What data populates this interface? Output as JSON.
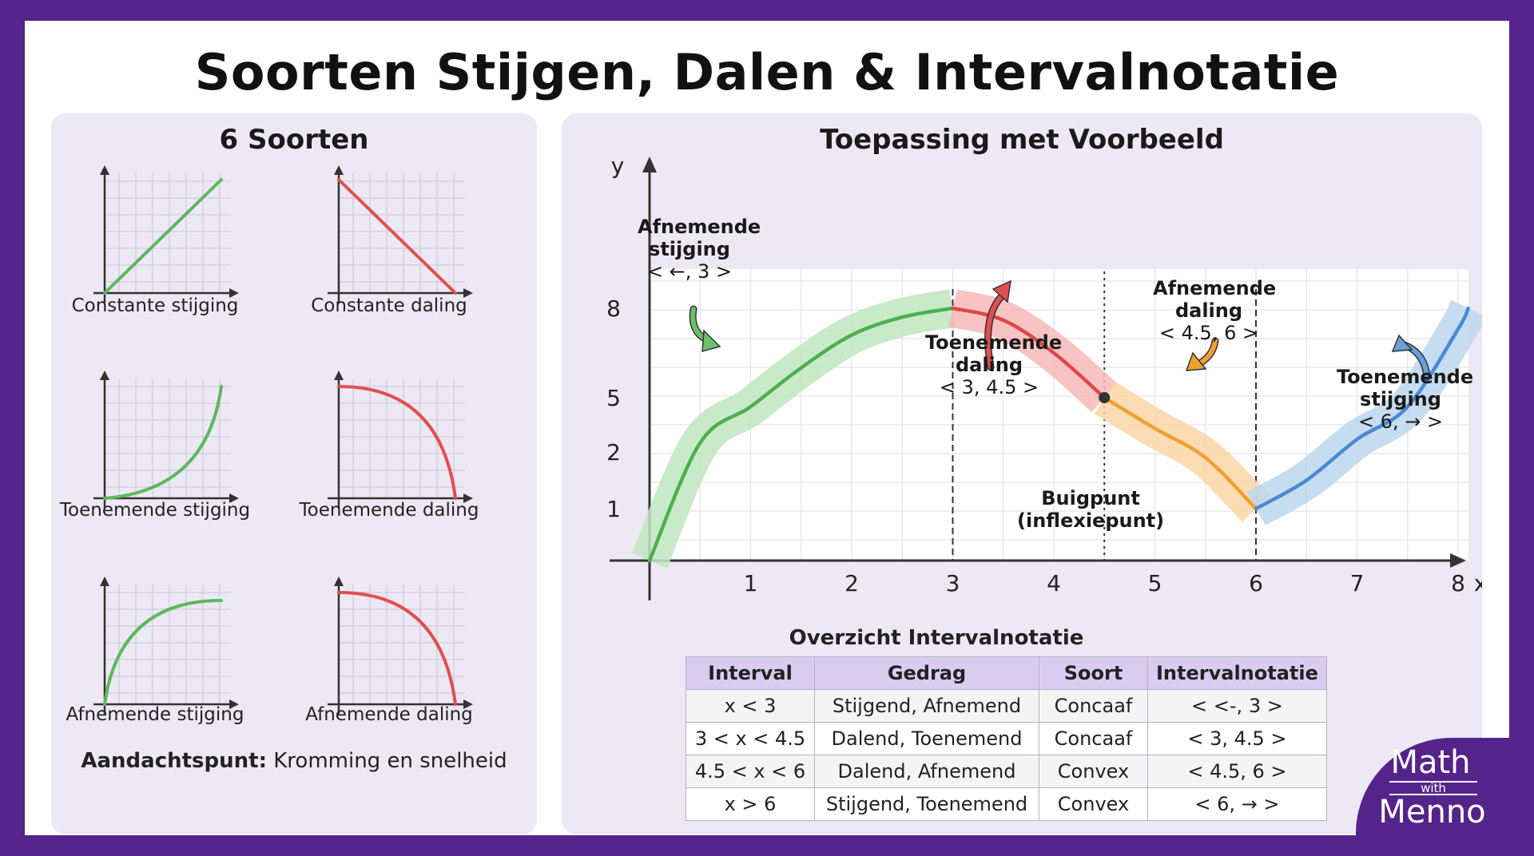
{
  "title": "Soorten Stijgen, Dalen & Intervalnotatie",
  "left_panel": {
    "title": "6 Soorten",
    "types": [
      {
        "label": "Constante stijging",
        "color": "#5cb85c",
        "shape": "linear-up"
      },
      {
        "label": "Constante daling",
        "color": "#e05050",
        "shape": "linear-down"
      },
      {
        "label": "Toenemende stijging",
        "color": "#5cb85c",
        "shape": "convex-up"
      },
      {
        "label": "Toenemende daling",
        "color": "#e05050",
        "shape": "concave-down"
      },
      {
        "label": "Afnemende stijging",
        "color": "#5cb85c",
        "shape": "concave-up"
      },
      {
        "label": "Afnemende daling",
        "color": "#e05050",
        "shape": "concave-down"
      }
    ],
    "note_bold": "Aandachtspunt:",
    "note_text": " Kromming en snelheid"
  },
  "right_panel": {
    "title": "Toepassing met Voorbeeld",
    "chart_data": {
      "type": "line",
      "xlabel": "x",
      "ylabel": "y",
      "x_ticks": [
        1,
        2,
        3,
        4,
        5,
        6,
        7,
        8
      ],
      "y_ticks": [
        1,
        2,
        5,
        8
      ],
      "xlim": [
        0,
        8.1
      ],
      "grid": true,
      "segments": [
        {
          "name": "Afnemende stijging",
          "interval": "< ←, 3 >",
          "color": "#4caf50",
          "band": "#bfe6bf",
          "x": [
            0,
            3
          ],
          "points": [
            [
              0,
              0
            ],
            [
              0.5,
              2.5
            ],
            [
              1,
              4.5
            ],
            [
              1.5,
              6
            ],
            [
              2,
              7.1
            ],
            [
              2.5,
              7.7
            ],
            [
              3,
              8
            ]
          ]
        },
        {
          "name": "Toenemende daling",
          "interval": "< 3, 4.5 >",
          "color": "#e04848",
          "band": "#f6b8b8",
          "x": [
            3,
            4.5
          ],
          "points": [
            [
              3,
              8
            ],
            [
              3.5,
              7.6
            ],
            [
              4,
              6.5
            ],
            [
              4.5,
              5
            ]
          ]
        },
        {
          "name": "Afnemende daling",
          "interval": "< 4.5, 6 >",
          "color": "#f0a030",
          "band": "#fbd6a6",
          "x": [
            4.5,
            6
          ],
          "points": [
            [
              4.5,
              5
            ],
            [
              5,
              3.3
            ],
            [
              5.5,
              1.9
            ],
            [
              6,
              1
            ]
          ]
        },
        {
          "name": "Toenemende stijging",
          "interval": "< 6, → >",
          "color": "#4a8ad0",
          "band": "#bcd6ee",
          "x": [
            6,
            8.1
          ],
          "points": [
            [
              6,
              1
            ],
            [
              6.5,
              1.5
            ],
            [
              7,
              2.7
            ],
            [
              7.5,
              4.5
            ],
            [
              8,
              7.3
            ],
            [
              8.1,
              8
            ]
          ]
        }
      ],
      "marker": {
        "x": 4.5,
        "y": 5,
        "label": "Buigpunt",
        "sublabel": "(inflexiepunt)"
      },
      "dashed_lines": [
        3,
        4.5,
        6
      ]
    },
    "table": {
      "title": "Overzicht Intervalnotatie",
      "headers": [
        "Interval",
        "Gedrag",
        "Soort",
        "Intervalnotatie"
      ],
      "rows": [
        [
          "x < 3",
          "Stijgend, Afnemend",
          "Concaaf",
          "< <-, 3 >"
        ],
        [
          "3 < x < 4.5",
          "Dalend, Toenemend",
          "Concaaf",
          "< 3, 4.5 >"
        ],
        [
          "4.5 < x < 6",
          "Dalend, Afnemend",
          "Convex",
          "< 4.5, 6 >"
        ],
        [
          "x > 6",
          "Stijgend, Toenemend",
          "Convex",
          "< 6, → >"
        ]
      ]
    }
  },
  "logo": {
    "line1": "Math",
    "line2": "with",
    "line3": "Menno"
  }
}
